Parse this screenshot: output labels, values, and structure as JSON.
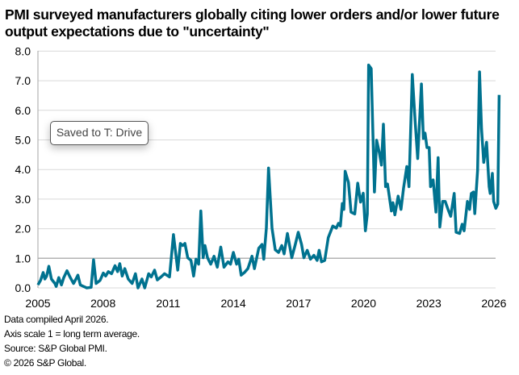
{
  "title": "PMI surveyed manufacturers globally citing lower orders and/or lower future output expectations due to \"uncertainty\"",
  "tooltip": "Saved to T: Drive",
  "footnotes": [
    "Data compiled April 2026.",
    "Axis scale 1 = long term average.",
    "Source: S&P Global PMI.",
    "© 2026 S&P Global."
  ],
  "colors": {
    "series": "#00728f",
    "grid": "#d9d9d9",
    "reference_line": "#b3b3b3"
  },
  "chart_data": {
    "type": "line",
    "title": "PMI surveyed manufacturers globally citing lower orders and/or lower future output expectations due to \"uncertainty\"",
    "xlabel": "",
    "ylabel": "",
    "xlim": [
      2005,
      2026.25
    ],
    "ylim": [
      0,
      8
    ],
    "x_ticks": [
      "2005",
      "2008",
      "2011",
      "2014",
      "2017",
      "2020",
      "2023",
      "2026"
    ],
    "y_ticks": [
      "0.0",
      "1.0",
      "2.0",
      "3.0",
      "4.0",
      "5.0",
      "6.0",
      "7.0",
      "8.0"
    ],
    "grid": true,
    "reference_line": 1.0,
    "legend": "none",
    "series": [
      {
        "points": [
          [
            2005.0,
            0.1
          ],
          [
            2005.12,
            0.25
          ],
          [
            2005.24,
            0.52
          ],
          [
            2005.32,
            0.3
          ],
          [
            2005.4,
            0.4
          ],
          [
            2005.5,
            0.73
          ],
          [
            2005.62,
            0.3
          ],
          [
            2005.78,
            0.15
          ],
          [
            2005.84,
            0.05
          ],
          [
            2005.96,
            0.35
          ],
          [
            2006.08,
            0.1
          ],
          [
            2006.19,
            0.35
          ],
          [
            2006.34,
            0.58
          ],
          [
            2006.49,
            0.35
          ],
          [
            2006.64,
            0.15
          ],
          [
            2006.75,
            0.3
          ],
          [
            2006.84,
            0.43
          ],
          [
            2006.95,
            0.1
          ],
          [
            2007.1,
            0.05
          ],
          [
            2007.25,
            0.0
          ],
          [
            2007.45,
            0.02
          ],
          [
            2007.56,
            0.95
          ],
          [
            2007.68,
            0.15
          ],
          [
            2007.86,
            0.25
          ],
          [
            2008.01,
            0.5
          ],
          [
            2008.12,
            0.4
          ],
          [
            2008.24,
            0.55
          ],
          [
            2008.39,
            0.48
          ],
          [
            2008.55,
            0.75
          ],
          [
            2008.67,
            0.55
          ],
          [
            2008.77,
            0.82
          ],
          [
            2008.88,
            0.4
          ],
          [
            2009.0,
            0.65
          ],
          [
            2009.16,
            0.3
          ],
          [
            2009.34,
            0.15
          ],
          [
            2009.49,
            0.48
          ],
          [
            2009.61,
            0.0
          ],
          [
            2009.79,
            0.3
          ],
          [
            2009.92,
            0.0
          ],
          [
            2010.1,
            0.48
          ],
          [
            2010.22,
            0.37
          ],
          [
            2010.37,
            0.6
          ],
          [
            2010.5,
            0.27
          ],
          [
            2010.68,
            0.38
          ],
          [
            2010.83,
            0.48
          ],
          [
            2011.06,
            0.37
          ],
          [
            2011.24,
            1.8
          ],
          [
            2011.44,
            0.6
          ],
          [
            2011.56,
            1.5
          ],
          [
            2011.67,
            1.43
          ],
          [
            2011.77,
            1.5
          ],
          [
            2011.9,
            1.02
          ],
          [
            2012.05,
            0.93
          ],
          [
            2012.17,
            0.4
          ],
          [
            2012.28,
            0.97
          ],
          [
            2012.4,
            0.8
          ],
          [
            2012.5,
            2.6
          ],
          [
            2012.61,
            1.02
          ],
          [
            2012.69,
            1.43
          ],
          [
            2012.81,
            1.02
          ],
          [
            2012.96,
            0.8
          ],
          [
            2013.11,
            1.07
          ],
          [
            2013.26,
            0.7
          ],
          [
            2013.42,
            1.38
          ],
          [
            2013.57,
            0.7
          ],
          [
            2013.75,
            0.88
          ],
          [
            2013.87,
            0.8
          ],
          [
            2014.0,
            1.2
          ],
          [
            2014.15,
            0.8
          ],
          [
            2014.25,
            0.97
          ],
          [
            2014.36,
            0.43
          ],
          [
            2014.51,
            0.52
          ],
          [
            2014.67,
            0.65
          ],
          [
            2014.86,
            1.07
          ],
          [
            2014.97,
            0.65
          ],
          [
            2015.17,
            1.34
          ],
          [
            2015.32,
            1.47
          ],
          [
            2015.4,
            0.97
          ],
          [
            2015.52,
            2.02
          ],
          [
            2015.62,
            4.05
          ],
          [
            2015.78,
            2.02
          ],
          [
            2015.93,
            1.29
          ],
          [
            2016.08,
            1.2
          ],
          [
            2016.23,
            1.43
          ],
          [
            2016.34,
            1.15
          ],
          [
            2016.49,
            1.84
          ],
          [
            2016.69,
            1.02
          ],
          [
            2016.84,
            1.43
          ],
          [
            2016.99,
            1.88
          ],
          [
            2017.14,
            1.47
          ],
          [
            2017.25,
            1.02
          ],
          [
            2017.4,
            1.27
          ],
          [
            2017.55,
            0.97
          ],
          [
            2017.71,
            1.1
          ],
          [
            2017.86,
            0.93
          ],
          [
            2017.95,
            1.27
          ],
          [
            2018.06,
            0.88
          ],
          [
            2018.21,
            0.93
          ],
          [
            2018.37,
            1.7
          ],
          [
            2018.58,
            2.09
          ],
          [
            2018.74,
            2.02
          ],
          [
            2018.84,
            2.18
          ],
          [
            2018.93,
            2.09
          ],
          [
            2019.02,
            2.85
          ],
          [
            2019.09,
            2.65
          ],
          [
            2019.15,
            3.94
          ],
          [
            2019.3,
            3.56
          ],
          [
            2019.42,
            2.56
          ],
          [
            2019.59,
            2.5
          ],
          [
            2019.73,
            3.54
          ],
          [
            2019.86,
            2.9
          ],
          [
            2019.98,
            3.2
          ],
          [
            2020.08,
            1.93
          ],
          [
            2020.17,
            2.5
          ],
          [
            2020.23,
            7.53
          ],
          [
            2020.35,
            7.41
          ],
          [
            2020.5,
            3.24
          ],
          [
            2020.6,
            4.99
          ],
          [
            2020.73,
            4.55
          ],
          [
            2020.82,
            4.15
          ],
          [
            2020.91,
            5.53
          ],
          [
            2021.01,
            3.42
          ],
          [
            2021.1,
            3.51
          ],
          [
            2021.28,
            2.6
          ],
          [
            2021.35,
            2.88
          ],
          [
            2021.44,
            2.47
          ],
          [
            2021.59,
            3.1
          ],
          [
            2021.72,
            2.65
          ],
          [
            2021.84,
            3.38
          ],
          [
            2021.99,
            4.1
          ],
          [
            2022.09,
            3.42
          ],
          [
            2022.24,
            7.21
          ],
          [
            2022.37,
            5.64
          ],
          [
            2022.49,
            4.37
          ],
          [
            2022.66,
            6.89
          ],
          [
            2022.75,
            5.05
          ],
          [
            2022.83,
            5.23
          ],
          [
            2022.92,
            4.74
          ],
          [
            2023.02,
            4.74
          ],
          [
            2023.08,
            3.42
          ],
          [
            2023.2,
            3.65
          ],
          [
            2023.33,
            2.56
          ],
          [
            2023.43,
            4.4
          ],
          [
            2023.51,
            2.06
          ],
          [
            2023.64,
            2.92
          ],
          [
            2023.76,
            2.92
          ],
          [
            2023.89,
            2.65
          ],
          [
            2024.01,
            2.42
          ],
          [
            2024.17,
            3.19
          ],
          [
            2024.26,
            1.88
          ],
          [
            2024.42,
            1.84
          ],
          [
            2024.54,
            2.15
          ],
          [
            2024.63,
            1.93
          ],
          [
            2024.78,
            2.92
          ],
          [
            2024.88,
            2.65
          ],
          [
            2024.96,
            3.19
          ],
          [
            2025.06,
            3.24
          ],
          [
            2025.12,
            2.51
          ],
          [
            2025.25,
            3.97
          ],
          [
            2025.34,
            7.3
          ],
          [
            2025.43,
            5.37
          ],
          [
            2025.53,
            4.24
          ],
          [
            2025.66,
            4.92
          ],
          [
            2025.78,
            3.42
          ],
          [
            2025.83,
            3.19
          ],
          [
            2025.93,
            3.87
          ],
          [
            2025.99,
            2.92
          ],
          [
            2026.09,
            2.69
          ],
          [
            2026.18,
            2.83
          ],
          [
            2026.24,
            6.52
          ]
        ]
      }
    ]
  }
}
